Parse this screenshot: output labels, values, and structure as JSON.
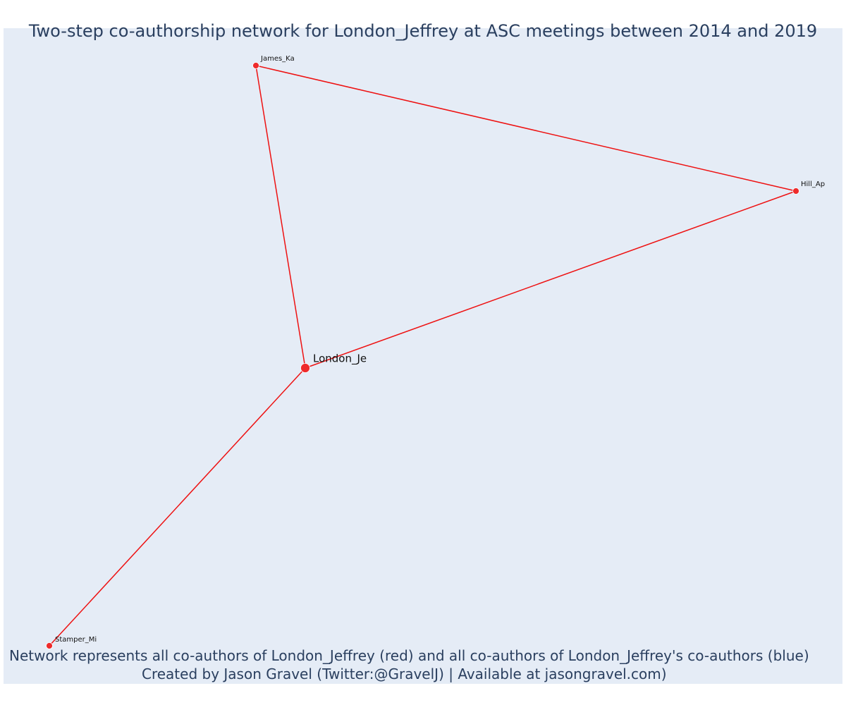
{
  "title": "Two-step co-authorship network for London_Jeffrey at ASC meetings between 2014 and 2019",
  "caption": {
    "line1": "Network represents all co-authors of London_Jeffrey (red) and all co-authors of London_Jeffrey's co-authors (blue)",
    "line2": "Created by Jason Gravel (Twitter:@GravelJ) | Available at jasongravel.com)"
  },
  "colors": {
    "background": "#e5ecf6",
    "edge": "#ee1111",
    "node": "#ee2b2b",
    "node_stroke": "#ffffff",
    "title_text": "#2a3f5f",
    "label_text": "#111111"
  },
  "nodes": [
    {
      "id": "london",
      "label": "London_Je",
      "role": "focal"
    },
    {
      "id": "james",
      "label": "James_Ka",
      "role": "co-author"
    },
    {
      "id": "hill",
      "label": "Hill_Ap",
      "role": "co-author"
    },
    {
      "id": "stamper",
      "label": "Stamper_Mi",
      "role": "co-author"
    }
  ],
  "edges": [
    {
      "source": "london",
      "target": "james"
    },
    {
      "source": "london",
      "target": "hill"
    },
    {
      "source": "london",
      "target": "stamper"
    },
    {
      "source": "james",
      "target": "hill"
    }
  ]
}
